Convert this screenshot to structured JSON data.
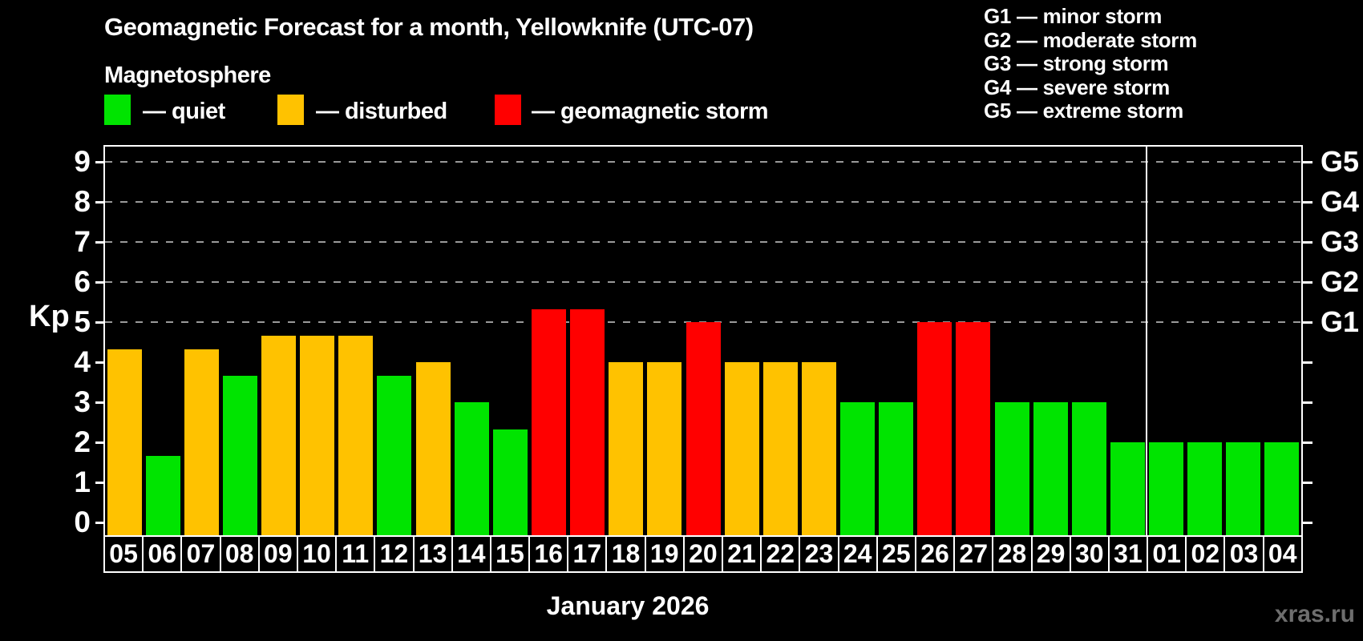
{
  "header": {
    "title": "Geomagnetic Forecast for a month, Yellowknife (UTC-07)",
    "subtitle": "Magnetosphere"
  },
  "legend": {
    "items": [
      {
        "key": "quiet",
        "label": "— quiet",
        "color": "#00E400"
      },
      {
        "key": "disturbed",
        "label": "— disturbed",
        "color": "#FFC200"
      },
      {
        "key": "storm",
        "label": "— geomagnetic storm",
        "color": "#FF0000"
      }
    ]
  },
  "g_scale_legend": {
    "items": [
      "G1 — minor storm",
      "G2 — moderate storm",
      "G3 — strong storm",
      "G4 — severe storm",
      "G5 — extreme storm"
    ]
  },
  "footer": {
    "watermark": "xras.ru"
  },
  "chart_data": {
    "type": "bar",
    "title": "Geomagnetic Forecast for a month, Yellowknife (UTC-07)",
    "xlabel": "January 2026",
    "ylabel": "Kp",
    "ylim": [
      0,
      9
    ],
    "y_ticks": [
      0,
      1,
      2,
      3,
      4,
      5,
      6,
      7,
      8,
      9
    ],
    "grid": "dashed-horizontal",
    "gridlines_at_kp": [
      5,
      6,
      7,
      8,
      9
    ],
    "right_axis_labels": [
      {
        "label": "G1",
        "kp": 5
      },
      {
        "label": "G2",
        "kp": 6
      },
      {
        "label": "G3",
        "kp": 7
      },
      {
        "label": "G4",
        "kp": 8
      },
      {
        "label": "G5",
        "kp": 9
      }
    ],
    "categories": [
      "05",
      "06",
      "07",
      "08",
      "09",
      "10",
      "11",
      "12",
      "13",
      "14",
      "15",
      "16",
      "17",
      "18",
      "19",
      "20",
      "21",
      "22",
      "23",
      "24",
      "25",
      "26",
      "27",
      "28",
      "29",
      "30",
      "31",
      "01",
      "02",
      "03",
      "04"
    ],
    "values": [
      4.33,
      1.67,
      4.33,
      3.67,
      4.67,
      4.67,
      4.67,
      3.67,
      4,
      3,
      2.33,
      5.33,
      5.33,
      4,
      4,
      5,
      4,
      4,
      4,
      3,
      3,
      5,
      5,
      3,
      3,
      3,
      2,
      2,
      2,
      2,
      2
    ],
    "statuses": [
      "disturbed",
      "quiet",
      "disturbed",
      "quiet",
      "disturbed",
      "disturbed",
      "disturbed",
      "quiet",
      "disturbed",
      "quiet",
      "quiet",
      "storm",
      "storm",
      "disturbed",
      "disturbed",
      "storm",
      "disturbed",
      "disturbed",
      "disturbed",
      "quiet",
      "quiet",
      "storm",
      "storm",
      "quiet",
      "quiet",
      "quiet",
      "quiet",
      "quiet",
      "quiet",
      "quiet",
      "quiet"
    ],
    "month_boundary_index": 27,
    "colors": {
      "quiet": "#00E400",
      "disturbed": "#FFC200",
      "storm": "#FF0000"
    },
    "legend_position": "top-left"
  }
}
